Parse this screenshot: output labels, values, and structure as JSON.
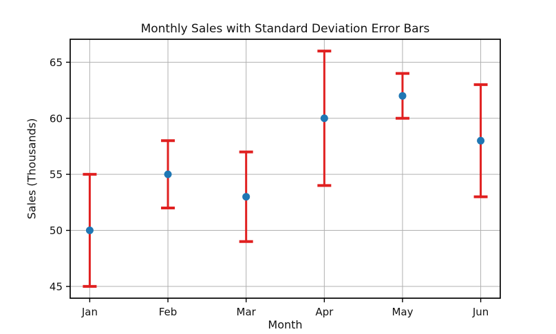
{
  "chart_data": {
    "type": "scatter",
    "subtype": "errorbar",
    "title": "Monthly Sales with Standard Deviation Error Bars",
    "xlabel": "Month",
    "ylabel": "Sales (Thousands)",
    "categories": [
      "Jan",
      "Feb",
      "Mar",
      "Apr",
      "May",
      "Jun"
    ],
    "values": [
      50,
      55,
      53,
      60,
      62,
      58
    ],
    "errors": [
      5,
      3,
      4,
      6,
      2,
      5
    ],
    "yticks": [
      45,
      50,
      55,
      60,
      65
    ],
    "ylim": [
      43.95,
      67.05
    ],
    "xlim": [
      -0.25,
      5.25
    ],
    "grid": true,
    "legend": "none",
    "marker_color": "#1f77b4",
    "error_color": "#e02020",
    "grid_color": "#b0b0b0",
    "axis_color": "#000000"
  }
}
